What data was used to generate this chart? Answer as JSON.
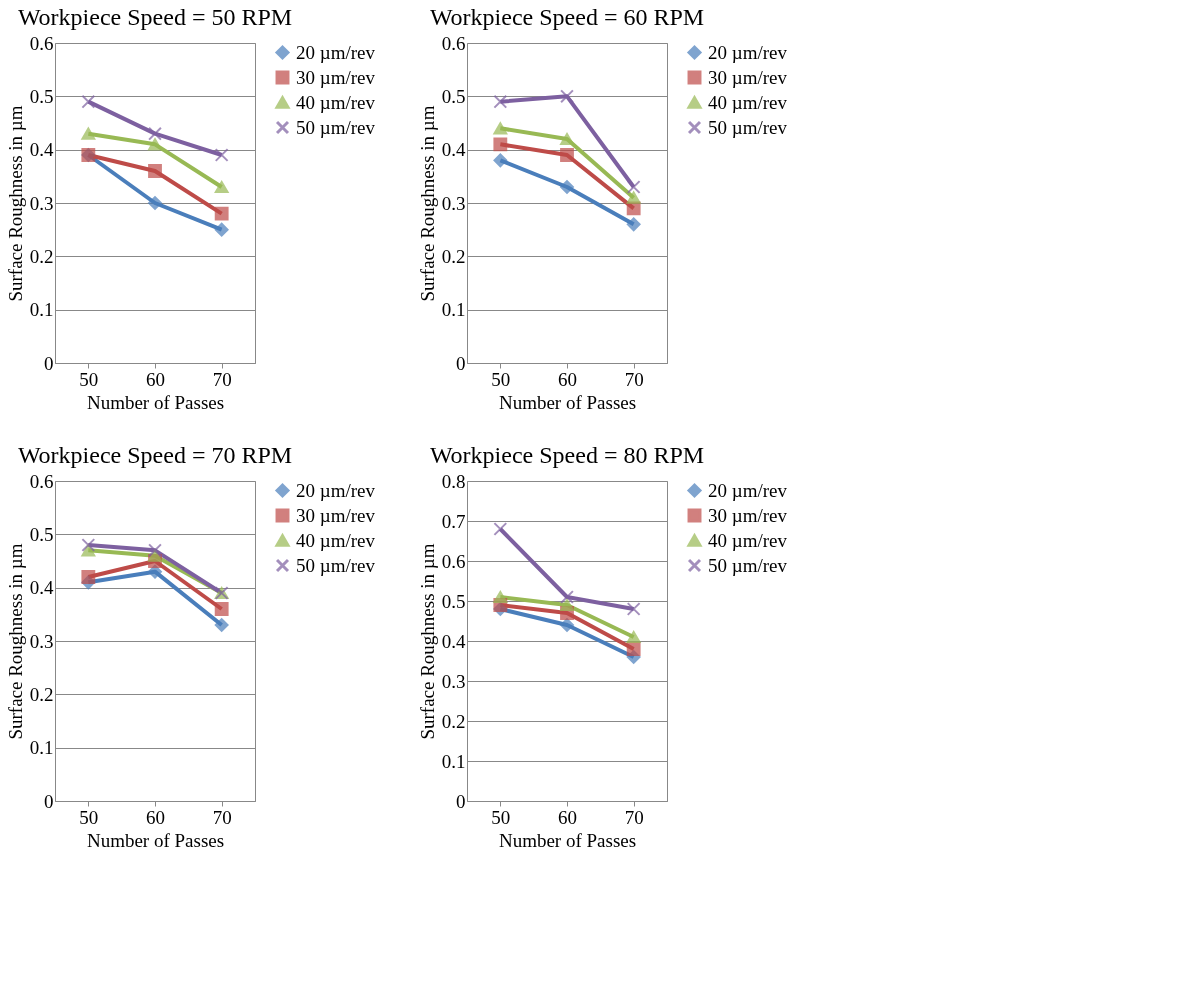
{
  "chart_data": [
    {
      "type": "line",
      "title": "Workpiece Speed  = 50 RPM",
      "xlabel": "Number of Passes",
      "ylabel": "Surface Roughness in µm",
      "categories": [
        "50",
        "60",
        "70"
      ],
      "ylim": [
        0,
        0.6
      ],
      "yticks": [
        0,
        0.1,
        0.2,
        0.3,
        0.4,
        0.5,
        0.6
      ],
      "grid": "y",
      "legend": "right",
      "series": [
        {
          "name": "20 µm/rev",
          "color": "#4a7ebb",
          "marker": "diamond",
          "values": [
            0.39,
            0.3,
            0.25
          ]
        },
        {
          "name": "30 µm/rev",
          "color": "#be4b48",
          "marker": "square",
          "values": [
            0.39,
            0.36,
            0.28
          ]
        },
        {
          "name": "40 µm/rev",
          "color": "#98b954",
          "marker": "triangle",
          "values": [
            0.43,
            0.41,
            0.33
          ]
        },
        {
          "name": "50 µm/rev",
          "color": "#7d60a0",
          "marker": "cross",
          "values": [
            0.49,
            0.43,
            0.39
          ]
        }
      ]
    },
    {
      "type": "line",
      "title": "Workpiece Speed  = 60 RPM",
      "xlabel": "Number of Passes",
      "ylabel": "Surface Roughness in µm",
      "categories": [
        "50",
        "60",
        "70"
      ],
      "ylim": [
        0,
        0.6
      ],
      "yticks": [
        0,
        0.1,
        0.2,
        0.3,
        0.4,
        0.5,
        0.6
      ],
      "grid": "y",
      "legend": "right",
      "series": [
        {
          "name": "20 µm/rev",
          "color": "#4a7ebb",
          "marker": "diamond",
          "values": [
            0.38,
            0.33,
            0.26
          ]
        },
        {
          "name": "30 µm/rev",
          "color": "#be4b48",
          "marker": "square",
          "values": [
            0.41,
            0.39,
            0.29
          ]
        },
        {
          "name": "40 µm/rev",
          "color": "#98b954",
          "marker": "triangle",
          "values": [
            0.44,
            0.42,
            0.31
          ]
        },
        {
          "name": "50 µm/rev",
          "color": "#7d60a0",
          "marker": "cross",
          "values": [
            0.49,
            0.5,
            0.33
          ]
        }
      ]
    },
    {
      "type": "line",
      "title": "Workpiece Speed  = 70 RPM",
      "xlabel": "Number of Passes",
      "ylabel": "Surface Roughness in µm",
      "categories": [
        "50",
        "60",
        "70"
      ],
      "ylim": [
        0,
        0.6
      ],
      "yticks": [
        0,
        0.1,
        0.2,
        0.3,
        0.4,
        0.5,
        0.6
      ],
      "grid": "y",
      "legend": "right",
      "series": [
        {
          "name": "20 µm/rev",
          "color": "#4a7ebb",
          "marker": "diamond",
          "values": [
            0.41,
            0.43,
            0.33
          ]
        },
        {
          "name": "30 µm/rev",
          "color": "#be4b48",
          "marker": "square",
          "values": [
            0.42,
            0.45,
            0.36
          ]
        },
        {
          "name": "40 µm/rev",
          "color": "#98b954",
          "marker": "triangle",
          "values": [
            0.47,
            0.46,
            0.39
          ]
        },
        {
          "name": "50 µm/rev",
          "color": "#7d60a0",
          "marker": "cross",
          "values": [
            0.48,
            0.47,
            0.39
          ]
        }
      ]
    },
    {
      "type": "line",
      "title": "Workpiece Speed  = 80 RPM",
      "xlabel": "Number of Passes",
      "ylabel": "Surface Roughness in µm",
      "categories": [
        "50",
        "60",
        "70"
      ],
      "ylim": [
        0,
        0.8
      ],
      "yticks": [
        0,
        0.1,
        0.2,
        0.3,
        0.4,
        0.5,
        0.6,
        0.7,
        0.8
      ],
      "grid": "y",
      "legend": "right",
      "series": [
        {
          "name": "20 µm/rev",
          "color": "#4a7ebb",
          "marker": "diamond",
          "values": [
            0.48,
            0.44,
            0.36
          ]
        },
        {
          "name": "30 µm/rev",
          "color": "#be4b48",
          "marker": "square",
          "values": [
            0.49,
            0.47,
            0.38
          ]
        },
        {
          "name": "40 µm/rev",
          "color": "#98b954",
          "marker": "triangle",
          "values": [
            0.51,
            0.49,
            0.41
          ]
        },
        {
          "name": "50 µm/rev",
          "color": "#7d60a0",
          "marker": "cross",
          "values": [
            0.68,
            0.51,
            0.48
          ]
        }
      ]
    }
  ]
}
